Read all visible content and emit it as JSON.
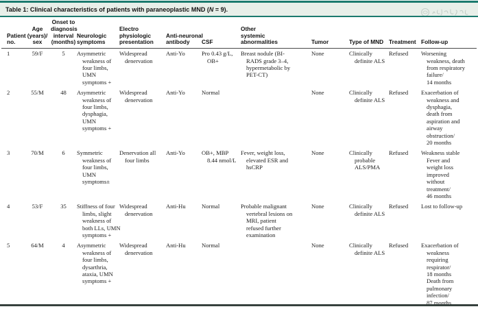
{
  "title": {
    "prefix": "Table 1: Clinical characteristics of patients with paraneoplastic MND (",
    "n_symbol": "N",
    "suffix": " = 9)."
  },
  "table": {
    "columns": [
      {
        "label": "Patient\nno."
      },
      {
        "label": "Age\n(years)/\nsex"
      },
      {
        "label": "Onset to\ndiagnosis\ninterval\n(months)"
      },
      {
        "label": "Neurologic\nsymptoms"
      },
      {
        "label": "Electro\nphysiologic\npresentation"
      },
      {
        "label": "Anti-neuronal\nantibody"
      },
      {
        "label": "CSF"
      },
      {
        "label": "Other\nsystemic\nabnormalities"
      },
      {
        "label": "Tumor"
      },
      {
        "label": "Type of MND"
      },
      {
        "label": "Treatment"
      },
      {
        "label": "Follow-up"
      }
    ],
    "rows": [
      {
        "cells": [
          "1",
          "59/F",
          "5",
          "Asymmetric\nweakness of\nfour limbs,\nUMN\nsymptoms +",
          "Widespread\ndenervation",
          "Anti-Yo",
          "Pro 0.43 g/L,\nOB+",
          "Breast nodule (BI-\nRADS grade 3–4,\nhypermetabolic by\nPET-CT)",
          "None",
          "Clinically\ndefinite ALS",
          "Refused",
          "Worsening\nweakness, death\nfrom respiratory\nfailure/\n14 months"
        ]
      },
      {
        "cells": [
          "2",
          "55/M",
          "48",
          "Asymmetric\nweakness of\nfour limbs,\ndysphagia,\nUMN\nsymptoms +",
          "Widespread\ndenervation",
          "Anti-Yo",
          "Normal",
          "",
          "None",
          "Clinically\ndefinite ALS",
          "Refused",
          "Exacerbation of\nweakness and\ndysphagia,\ndeath from\naspiration and\nairway\nobstruction/\n20 months"
        ]
      },
      {
        "cells": [
          "3",
          "70/M",
          "6",
          "Symmetric\nweakness of\nfour limbs,\nUMN\nsymptoms±",
          "Denervation all\nfour limbs",
          "Anti-Yo",
          "OB+, MBP\n8.44 nmol/L",
          "Fever, weight loss,\nelevated ESR and\nhsCRP",
          "None",
          "Clinically\nprobable\nALS/PMA",
          "Refused",
          "Weakness stable\nFever and\nweight loss\nimproved\nwithout\ntreatment/\n46 months"
        ]
      },
      {
        "cells": [
          "4",
          "53/F",
          "35",
          "Stiffness of four\nlimbs, slight\nweakness of\nboth LLs, UMN\nsymptoms +",
          "Widespread\ndenervation",
          "Anti-Hu",
          "Normal",
          "Probable malignant\nvertebral lesions on\nMRI, patient\nrefused further\nexamination",
          "None",
          "Clinically\ndefinite ALS",
          "Refused",
          "Lost to follow-up"
        ]
      },
      {
        "cells": [
          "5",
          "64/M",
          "4",
          "Asymmetric\nweakness of\nfour limbs,\ndysarthria,\nataxia, UMN\nsymptoms +",
          "Widespread\ndenervation",
          "Anti-Hu",
          "Normal",
          "",
          "None",
          "Clinically\ndefinite ALS",
          "Refused",
          "Exacerbation of\nweakness\nrequiring\nrespirator/\n18 months\nDeath from\npulmonary\ninfection/\n87 months"
        ]
      }
    ]
  }
}
